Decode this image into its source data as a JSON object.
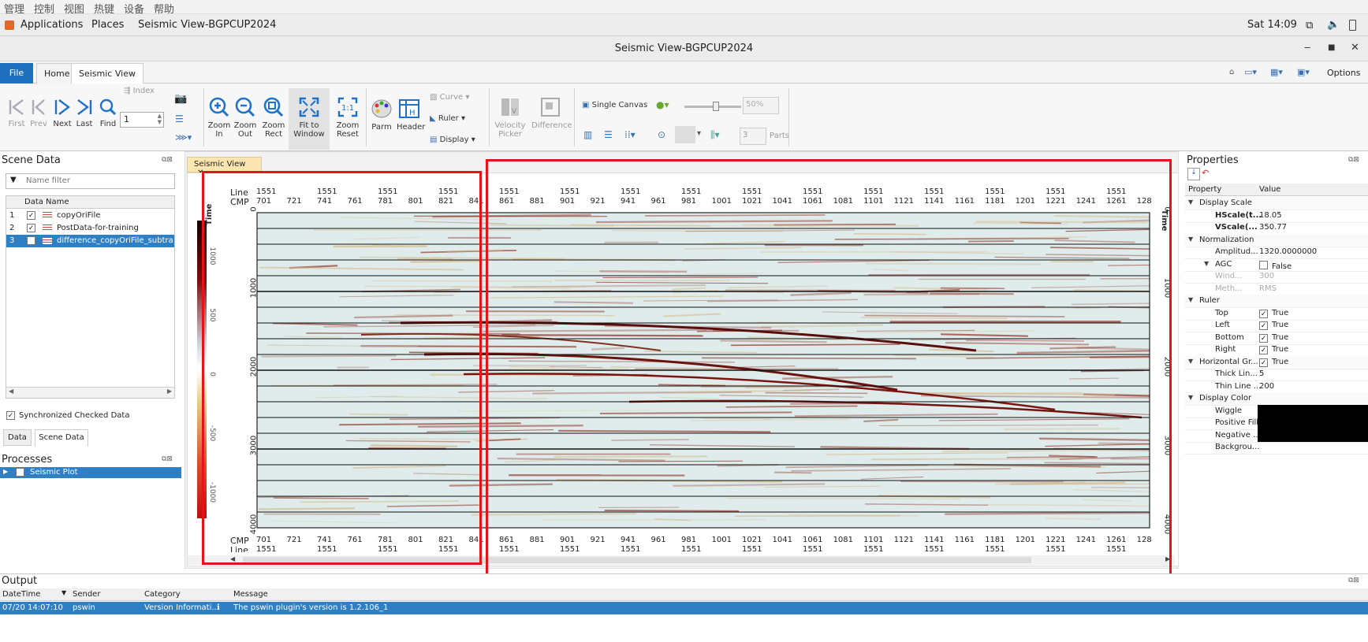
{
  "vm_menu": [
    "管理",
    "控制",
    "视图",
    "热键",
    "设备",
    "帮助"
  ],
  "topbar": {
    "applications": "Applications",
    "places": "Places",
    "window_name": "Seismic View-BGPCUP2024",
    "clock": "Sat 14:09"
  },
  "window": {
    "title": "Seismic View-BGPCUP2024"
  },
  "ribbon_tabs": {
    "file": "File",
    "home": "Home",
    "seismic_view": "Seismic View",
    "options": "Options"
  },
  "toolbar": {
    "first": "First",
    "prev": "Prev",
    "next": "Next",
    "last": "Last",
    "find": "Find",
    "index": "Index",
    "index_value": "1",
    "zoom_in_1": "Zoom",
    "zoom_in_2": "In",
    "zoom_out_1": "Zoom",
    "zoom_out_2": "Out",
    "zoom_rect_1": "Zoom",
    "zoom_rect_2": "Rect",
    "fit_1": "Fit to",
    "fit_2": "Window",
    "reset_1": "Zoom",
    "reset_2": "Reset",
    "parm": "Parm",
    "header": "Header",
    "curve": "Curve",
    "ruler": "Ruler",
    "display": "Display",
    "velocity_1": "Velocity",
    "velocity_2": "Picker",
    "difference": "Difference",
    "single_canvas": "Single Canvas",
    "percent": "50%",
    "parts_value": "3",
    "parts": "Parts"
  },
  "scene_data": {
    "title": "Scene Data",
    "filter_placeholder": "Name filter",
    "column": "Data Name",
    "rows": [
      {
        "num": "1",
        "checked": "✓",
        "name": "copyOriFile"
      },
      {
        "num": "2",
        "checked": "✓",
        "name": "PostData-for-training"
      },
      {
        "num": "3",
        "checked": "",
        "name": "difference_copyOriFile_subtract_P"
      }
    ],
    "sync_label": "Synchronized Checked Data",
    "tab_data": "Data",
    "tab_scene": "Scene Data"
  },
  "processes": {
    "title": "Processes",
    "item": "Seismic Plot"
  },
  "view_tab": "Seismic View",
  "plot": {
    "line_label": "Line",
    "cmp_label": "CMP",
    "time_label": "Time",
    "line_value": "1551",
    "top_lines": [
      "1551",
      "1551",
      "1551",
      "1551",
      "1551",
      "1551",
      "1551",
      "1551",
      "1551",
      "1551",
      "1551",
      "1551",
      "1551",
      "1551",
      "1551"
    ],
    "cmp_ticks": [
      "701",
      "721",
      "741",
      "761",
      "781",
      "801",
      "821",
      "841",
      "861",
      "881",
      "901",
      "921",
      "941",
      "961",
      "981",
      "1001",
      "1021",
      "1041",
      "1061",
      "1081",
      "1101",
      "1121",
      "1141",
      "1161",
      "1181",
      "1201",
      "1221",
      "1241",
      "1261",
      "128"
    ],
    "time_ticks": [
      "0",
      "1000",
      "2000",
      "3000",
      "4000"
    ],
    "colorbar_ticks": [
      "1000",
      "500",
      "0",
      "-500",
      "-1000"
    ]
  },
  "properties": {
    "title": "Properties",
    "col_property": "Property",
    "col_value": "Value",
    "rows": [
      {
        "k": "Display Scale",
        "v": "",
        "group": true
      },
      {
        "k": "HScale(t...",
        "v": "18.05"
      },
      {
        "k": "VScale(...",
        "v": "350.77"
      },
      {
        "k": "Normalization",
        "v": "",
        "group": true
      },
      {
        "k": "Amplitud...",
        "v": "1320.0000000"
      },
      {
        "k": "AGC",
        "v": "False",
        "sub": true
      },
      {
        "k": "Wind...",
        "v": "300",
        "dim": true
      },
      {
        "k": "Meth...",
        "v": "RMS",
        "dim": true
      },
      {
        "k": "Ruler",
        "v": "",
        "group": true
      },
      {
        "k": "Top",
        "v": "True"
      },
      {
        "k": "Left",
        "v": "True"
      },
      {
        "k": "Bottom",
        "v": "True"
      },
      {
        "k": "Right",
        "v": "True"
      },
      {
        "k": "Horizontal Gr...",
        "v": "True",
        "group": true
      },
      {
        "k": "Thick Lin...",
        "v": "5"
      },
      {
        "k": "Thin Line ...",
        "v": "200"
      },
      {
        "k": "Display Color",
        "v": "",
        "group": true
      },
      {
        "k": "Wiggle",
        "v": ""
      },
      {
        "k": "Positive Fill",
        "v": ""
      },
      {
        "k": "Negative ...",
        "v": ""
      },
      {
        "k": "Backgrou...",
        "v": ""
      }
    ]
  },
  "output": {
    "title": "Output",
    "columns": [
      "DateTime",
      "Sender",
      "Category",
      "Message"
    ],
    "row": {
      "datetime": "07/20 14:07:10",
      "sender": "pswin",
      "category": "Version Informati...",
      "message": "The pswin plugin's version is 1.2.106_1"
    }
  },
  "colors": {
    "accent": "#2f7fc4",
    "highlight_box": "#e8121b",
    "file_tab": "#1f6fbf"
  }
}
